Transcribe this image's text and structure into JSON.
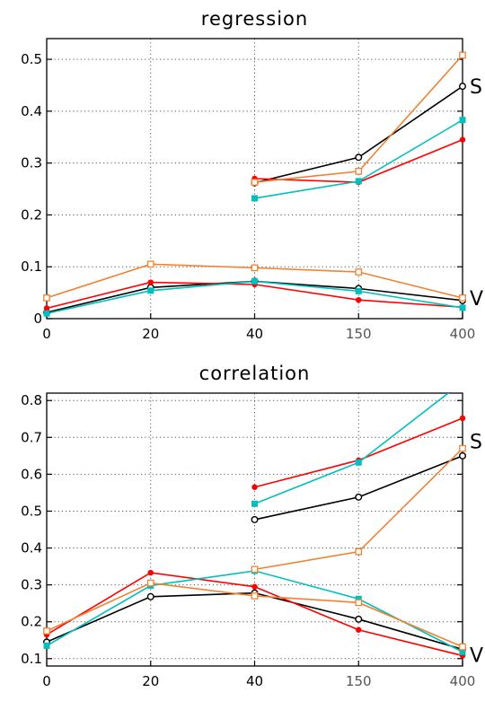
{
  "chart_data": [
    {
      "type": "line",
      "title": "regression",
      "categories": [
        "0",
        "20",
        "40",
        "150",
        "400"
      ],
      "ylim": [
        0,
        0.54
      ],
      "yticks": [
        "0",
        "0.1",
        "0.2",
        "0.3",
        "0.4",
        "0.5"
      ],
      "grid": true,
      "series": [
        {
          "group": "V",
          "color": "#000000",
          "marker": "open-circle",
          "values": [
            0.012,
            0.06,
            0.072,
            0.058,
            0.035
          ]
        },
        {
          "group": "V",
          "color": "#ff0000",
          "marker": "filled-circle",
          "values": [
            0.02,
            0.07,
            0.066,
            0.036,
            0.022
          ]
        },
        {
          "group": "V",
          "color": "#00bfbf",
          "marker": "filled-square",
          "values": [
            0.01,
            0.054,
            0.072,
            0.053,
            0.021
          ]
        },
        {
          "group": "V",
          "color": "#f08232",
          "marker": "open-square",
          "values": [
            0.04,
            0.105,
            0.098,
            0.09,
            0.04
          ]
        },
        {
          "group": "S",
          "color": "#000000",
          "marker": "open-circle",
          "values": [
            null,
            null,
            0.262,
            0.311,
            0.448
          ]
        },
        {
          "group": "S",
          "color": "#ff0000",
          "marker": "filled-circle",
          "values": [
            null,
            null,
            0.27,
            0.263,
            0.345
          ]
        },
        {
          "group": "S",
          "color": "#00bfbf",
          "marker": "filled-square",
          "values": [
            null,
            null,
            0.232,
            0.265,
            0.383
          ]
        },
        {
          "group": "S",
          "color": "#f08232",
          "marker": "open-square",
          "values": [
            null,
            null,
            0.263,
            0.284,
            0.508
          ]
        }
      ],
      "side_labels": [
        {
          "text": "S",
          "value": 0.448
        },
        {
          "text": "V",
          "value": 0.04
        }
      ]
    },
    {
      "type": "line",
      "title": "correlation",
      "categories": [
        "0",
        "20",
        "40",
        "150",
        "400"
      ],
      "ylim": [
        0.08,
        0.82
      ],
      "yticks": [
        "0.1",
        "0.2",
        "0.3",
        "0.4",
        "0.5",
        "0.6",
        "0.7",
        "0.8"
      ],
      "grid": true,
      "series": [
        {
          "group": "V",
          "color": "#000000",
          "marker": "open-circle",
          "values": [
            0.145,
            0.268,
            0.278,
            0.207,
            0.125
          ]
        },
        {
          "group": "V",
          "color": "#ff0000",
          "marker": "filled-circle",
          "values": [
            0.165,
            0.333,
            0.295,
            0.178,
            0.108
          ]
        },
        {
          "group": "V",
          "color": "#00bfbf",
          "marker": "filled-square",
          "values": [
            0.135,
            0.298,
            0.338,
            0.262,
            0.118
          ]
        },
        {
          "group": "V",
          "color": "#f08232",
          "marker": "open-square",
          "values": [
            0.175,
            0.305,
            0.27,
            0.252,
            0.132
          ]
        },
        {
          "group": "S",
          "color": "#000000",
          "marker": "open-circle",
          "values": [
            null,
            null,
            0.477,
            0.538,
            0.65
          ]
        },
        {
          "group": "S",
          "color": "#ff0000",
          "marker": "filled-circle",
          "values": [
            null,
            null,
            0.565,
            0.638,
            0.752
          ]
        },
        {
          "group": "S",
          "color": "#00bfbf",
          "marker": "filled-square",
          "values": [
            null,
            null,
            0.52,
            0.632,
            0.85
          ]
        },
        {
          "group": "S",
          "color": "#f08232",
          "marker": "open-square",
          "values": [
            null,
            null,
            0.342,
            0.39,
            0.67
          ]
        }
      ],
      "side_labels": [
        {
          "text": "S",
          "value": 0.69
        },
        {
          "text": "V",
          "value": 0.11
        }
      ]
    }
  ]
}
